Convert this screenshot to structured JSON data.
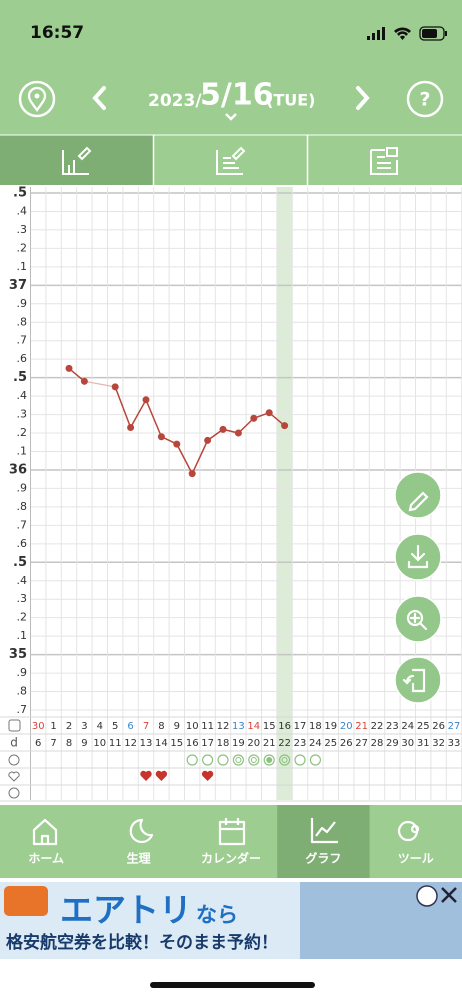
{
  "status_bar": {
    "time": "16:57"
  },
  "header": {
    "year": "2023/",
    "date": "5/16",
    "weekday": "(TUE)",
    "help": "?"
  },
  "chart_data": {
    "type": "line",
    "categories": [
      "30",
      "1",
      "2",
      "3",
      "4",
      "5",
      "6",
      "7",
      "8",
      "9",
      "10",
      "11",
      "12",
      "13",
      "14",
      "15",
      "16",
      "17",
      "18",
      "19",
      "20",
      "21",
      "22",
      "23",
      "24",
      "25",
      "26",
      "27"
    ],
    "category_colors": [
      "#d9453a",
      "#333",
      "#333",
      "#333",
      "#333",
      "#333",
      "#3b86c9",
      "#d9453a",
      "#333",
      "#333",
      "#333",
      "#333",
      "#333",
      "#3b86c9",
      "#d9453a",
      "#333",
      "#333",
      "#333",
      "#333",
      "#333",
      "#3b86c9",
      "#d9453a",
      "#333",
      "#333",
      "#333",
      "#333",
      "#333",
      "#3b86c9"
    ],
    "cycle_label": "d",
    "cycle_days": [
      6,
      7,
      8,
      9,
      10,
      11,
      12,
      13,
      14,
      15,
      16,
      17,
      18,
      19,
      20,
      21,
      22,
      23,
      24,
      25,
      26,
      27,
      28,
      29,
      30,
      31,
      32,
      33
    ],
    "values": [
      null,
      null,
      36.55,
      36.48,
      null,
      36.45,
      36.23,
      36.38,
      36.18,
      36.14,
      35.98,
      36.16,
      36.22,
      36.2,
      36.28,
      36.31,
      36.24,
      null,
      null,
      null,
      null,
      null,
      null,
      null,
      null,
      null,
      null,
      null
    ],
    "color": "#b8463b",
    "ylim": [
      34.7,
      37.5
    ],
    "yticks": [
      {
        "value": 37.5,
        "label": ".5"
      },
      {
        "value": 37.4,
        "label": ".4"
      },
      {
        "value": 37.3,
        "label": ".3"
      },
      {
        "value": 37.2,
        "label": ".2"
      },
      {
        "value": 37.1,
        "label": ".1"
      },
      37,
      {
        "value": 36.9,
        "label": ".9"
      },
      {
        "value": 36.8,
        "label": ".8"
      },
      {
        "value": 36.7,
        "label": ".7"
      },
      {
        "value": 36.6,
        "label": ".6"
      },
      {
        "value": 36.5,
        "label": ".5"
      },
      {
        "value": 36.4,
        "label": ".4"
      },
      {
        "value": 36.3,
        "label": ".3"
      },
      {
        "value": 36.2,
        "label": ".2"
      },
      {
        "value": 36.1,
        "label": ".1"
      },
      36,
      {
        "value": 35.9,
        "label": ".9"
      },
      {
        "value": 35.8,
        "label": ".8"
      },
      {
        "value": 35.7,
        "label": ".7"
      },
      {
        "value": 35.6,
        "label": ".6"
      },
      {
        "value": 35.5,
        "label": ".5"
      },
      {
        "value": 35.4,
        "label": ".4"
      },
      {
        "value": 35.3,
        "label": ".3"
      },
      {
        "value": 35.2,
        "label": ".2"
      },
      {
        "value": 35.1,
        "label": ".1"
      },
      35,
      {
        "value": 34.9,
        "label": ".9"
      },
      {
        "value": 34.8,
        "label": ".8"
      },
      {
        "value": 34.7,
        "label": ".7"
      }
    ],
    "grid": true
  },
  "nav": {
    "tabs": [
      "ホーム",
      "生理",
      "カレンダー",
      "グラフ",
      "ツール"
    ]
  },
  "ad": {
    "brand": "エアトリ",
    "suffix": "なら",
    "tagline": "格安航空券を比較！そのまま予約！"
  }
}
